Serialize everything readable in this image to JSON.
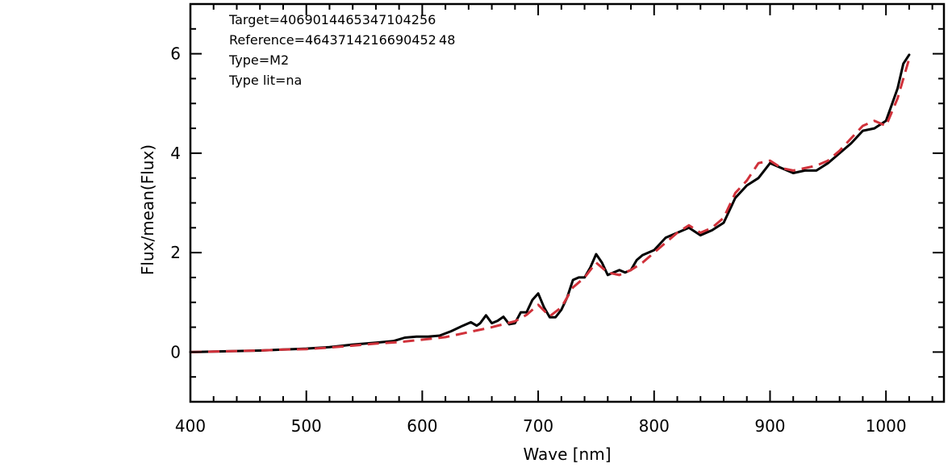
{
  "chart_data": {
    "type": "line",
    "xlabel": "Wave [nm]",
    "ylabel": "Flux/mean(Flux)",
    "xlim": [
      400,
      1050
    ],
    "ylim": [
      -1,
      7
    ],
    "x_ticks": [
      400,
      500,
      600,
      700,
      800,
      900,
      1000
    ],
    "y_ticks": [
      0,
      2,
      4,
      6
    ],
    "annotations": [
      "Target=4069014465347104256",
      "Reference=4643714216690452 48",
      "Type=M2",
      "Type lit=na"
    ],
    "series": [
      {
        "color": "#000000",
        "style": "solid",
        "points": [
          [
            400,
            0.0
          ],
          [
            420,
            0.01
          ],
          [
            440,
            0.02
          ],
          [
            460,
            0.03
          ],
          [
            480,
            0.05
          ],
          [
            500,
            0.07
          ],
          [
            520,
            0.1
          ],
          [
            540,
            0.15
          ],
          [
            560,
            0.19
          ],
          [
            575,
            0.22
          ],
          [
            585,
            0.29
          ],
          [
            595,
            0.31
          ],
          [
            605,
            0.31
          ],
          [
            615,
            0.33
          ],
          [
            625,
            0.42
          ],
          [
            635,
            0.53
          ],
          [
            642,
            0.6
          ],
          [
            647,
            0.53
          ],
          [
            650,
            0.58
          ],
          [
            655,
            0.74
          ],
          [
            660,
            0.58
          ],
          [
            665,
            0.63
          ],
          [
            670,
            0.71
          ],
          [
            675,
            0.56
          ],
          [
            680,
            0.58
          ],
          [
            685,
            0.8
          ],
          [
            690,
            0.8
          ],
          [
            695,
            1.05
          ],
          [
            700,
            1.18
          ],
          [
            705,
            0.9
          ],
          [
            710,
            0.7
          ],
          [
            715,
            0.7
          ],
          [
            720,
            0.85
          ],
          [
            725,
            1.1
          ],
          [
            730,
            1.45
          ],
          [
            735,
            1.5
          ],
          [
            740,
            1.5
          ],
          [
            745,
            1.7
          ],
          [
            750,
            1.97
          ],
          [
            755,
            1.8
          ],
          [
            760,
            1.55
          ],
          [
            765,
            1.6
          ],
          [
            770,
            1.65
          ],
          [
            775,
            1.6
          ],
          [
            780,
            1.65
          ],
          [
            785,
            1.85
          ],
          [
            790,
            1.95
          ],
          [
            800,
            2.05
          ],
          [
            810,
            2.3
          ],
          [
            820,
            2.4
          ],
          [
            830,
            2.5
          ],
          [
            840,
            2.35
          ],
          [
            850,
            2.45
          ],
          [
            860,
            2.6
          ],
          [
            870,
            3.1
          ],
          [
            880,
            3.35
          ],
          [
            890,
            3.5
          ],
          [
            900,
            3.8
          ],
          [
            910,
            3.7
          ],
          [
            920,
            3.6
          ],
          [
            930,
            3.65
          ],
          [
            940,
            3.65
          ],
          [
            950,
            3.8
          ],
          [
            960,
            4.0
          ],
          [
            970,
            4.2
          ],
          [
            980,
            4.45
          ],
          [
            990,
            4.5
          ],
          [
            1000,
            4.65
          ],
          [
            1010,
            5.3
          ],
          [
            1015,
            5.8
          ],
          [
            1020,
            5.98
          ]
        ]
      },
      {
        "color": "#d0313a",
        "style": "dashed",
        "points": [
          [
            400,
            0.0
          ],
          [
            420,
            0.01
          ],
          [
            440,
            0.02
          ],
          [
            460,
            0.03
          ],
          [
            480,
            0.05
          ],
          [
            500,
            0.06
          ],
          [
            520,
            0.09
          ],
          [
            540,
            0.13
          ],
          [
            560,
            0.17
          ],
          [
            580,
            0.2
          ],
          [
            600,
            0.25
          ],
          [
            620,
            0.3
          ],
          [
            640,
            0.4
          ],
          [
            660,
            0.5
          ],
          [
            680,
            0.62
          ],
          [
            690,
            0.75
          ],
          [
            700,
            0.95
          ],
          [
            710,
            0.72
          ],
          [
            720,
            0.9
          ],
          [
            730,
            1.3
          ],
          [
            740,
            1.5
          ],
          [
            750,
            1.8
          ],
          [
            760,
            1.6
          ],
          [
            770,
            1.55
          ],
          [
            780,
            1.65
          ],
          [
            790,
            1.8
          ],
          [
            800,
            2.0
          ],
          [
            810,
            2.2
          ],
          [
            820,
            2.4
          ],
          [
            830,
            2.55
          ],
          [
            840,
            2.4
          ],
          [
            850,
            2.5
          ],
          [
            860,
            2.7
          ],
          [
            870,
            3.2
          ],
          [
            880,
            3.45
          ],
          [
            890,
            3.8
          ],
          [
            900,
            3.85
          ],
          [
            910,
            3.7
          ],
          [
            920,
            3.65
          ],
          [
            930,
            3.7
          ],
          [
            940,
            3.75
          ],
          [
            950,
            3.85
          ],
          [
            960,
            4.05
          ],
          [
            970,
            4.3
          ],
          [
            980,
            4.55
          ],
          [
            990,
            4.65
          ],
          [
            1000,
            4.55
          ],
          [
            1010,
            5.1
          ],
          [
            1020,
            5.9
          ]
        ]
      }
    ]
  }
}
